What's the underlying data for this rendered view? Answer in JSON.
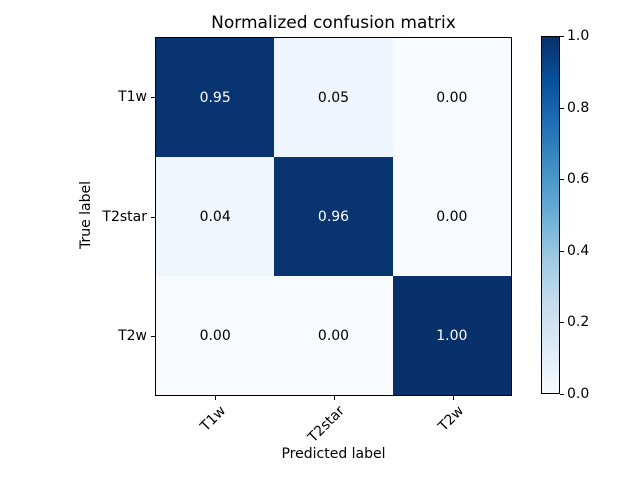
{
  "chart_data": {
    "type": "heatmap",
    "title": "Normalized confusion matrix",
    "xlabel": "Predicted label",
    "ylabel": "True label",
    "x_tick_labels": [
      "T1w",
      "T2star",
      "T2w"
    ],
    "y_tick_labels": [
      "T1w",
      "T2star",
      "T2w"
    ],
    "matrix": [
      [
        0.95,
        0.05,
        0.0
      ],
      [
        0.04,
        0.96,
        0.0
      ],
      [
        0.0,
        0.0,
        1.0
      ]
    ],
    "cell_labels": [
      [
        "0.95",
        "0.05",
        "0.00"
      ],
      [
        "0.04",
        "0.96",
        "0.00"
      ],
      [
        "0.00",
        "0.00",
        "1.00"
      ]
    ],
    "cell_colors": [
      [
        "#083572",
        "#eef5fc",
        "#f7fbff"
      ],
      [
        "#eff6fc",
        "#083470",
        "#f7fbff"
      ],
      [
        "#f7fbff",
        "#f7fbff",
        "#08306b"
      ]
    ],
    "text_color_dark_cells": "#ffffff",
    "text_color_light_cells": "#000000",
    "text_threshold": 0.5,
    "colormap": "Blues",
    "grid": false,
    "value_range": [
      0.0,
      1.0
    ],
    "colorbar": {
      "position": "right",
      "ticks": [
        "1.0",
        "0.8",
        "0.6",
        "0.4",
        "0.2",
        "0.0"
      ],
      "tick_values": [
        1.0,
        0.8,
        0.6,
        0.4,
        0.2,
        0.0
      ],
      "gradient_stops": [
        "#f7fbff",
        "#deebf7",
        "#c6dbef",
        "#9ecae1",
        "#6baed6",
        "#4292c6",
        "#2171b5",
        "#08519c",
        "#08306b"
      ]
    }
  },
  "colors": {
    "background": "#ffffff",
    "axes_border": "#000000",
    "text": "#000000"
  }
}
